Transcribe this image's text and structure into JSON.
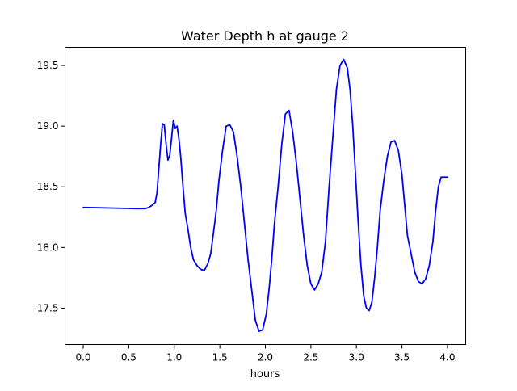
{
  "chart_data": {
    "type": "line",
    "title": "Water Depth h at gauge 2",
    "xlabel": "hours",
    "ylabel": "",
    "xlim": [
      -0.2,
      4.2
    ],
    "ylim": [
      17.2,
      19.65
    ],
    "xticks": [
      0.0,
      0.5,
      1.0,
      1.5,
      2.0,
      2.5,
      3.0,
      3.5,
      4.0
    ],
    "xtick_labels": [
      "0.0",
      "0.5",
      "1.0",
      "1.5",
      "2.0",
      "2.5",
      "3.0",
      "3.5",
      "4.0"
    ],
    "yticks": [
      17.5,
      18.0,
      18.5,
      19.0,
      19.5
    ],
    "ytick_labels": [
      "17.5",
      "18.0",
      "18.5",
      "19.0",
      "19.5"
    ],
    "grid": false,
    "series": [
      {
        "color": "#0000ff",
        "x": [
          0.0,
          0.3,
          0.6,
          0.68,
          0.72,
          0.76,
          0.79,
          0.81,
          0.83,
          0.85,
          0.87,
          0.89,
          0.91,
          0.93,
          0.95,
          0.97,
          0.99,
          1.01,
          1.03,
          1.05,
          1.07,
          1.09,
          1.12,
          1.15,
          1.18,
          1.21,
          1.25,
          1.29,
          1.33,
          1.37,
          1.4,
          1.43,
          1.46,
          1.49,
          1.53,
          1.57,
          1.61,
          1.65,
          1.69,
          1.73,
          1.77,
          1.81,
          1.85,
          1.89,
          1.93,
          1.97,
          2.01,
          2.04,
          2.07,
          2.1,
          2.14,
          2.18,
          2.22,
          2.26,
          2.3,
          2.34,
          2.38,
          2.42,
          2.46,
          2.5,
          2.54,
          2.58,
          2.62,
          2.66,
          2.7,
          2.74,
          2.78,
          2.82,
          2.86,
          2.9,
          2.93,
          2.96,
          2.99,
          3.02,
          3.05,
          3.08,
          3.11,
          3.14,
          3.17,
          3.2,
          3.23,
          3.26,
          3.3,
          3.34,
          3.38,
          3.42,
          3.46,
          3.5,
          3.53,
          3.56,
          3.6,
          3.64,
          3.68,
          3.72,
          3.76,
          3.8,
          3.84,
          3.87,
          3.9,
          3.93,
          3.96,
          4.0
        ],
        "y": [
          18.33,
          18.325,
          18.32,
          18.32,
          18.33,
          18.35,
          18.37,
          18.45,
          18.65,
          18.85,
          19.02,
          19.01,
          18.85,
          18.72,
          18.76,
          18.9,
          19.05,
          18.98,
          19.0,
          18.9,
          18.75,
          18.55,
          18.28,
          18.15,
          18.0,
          17.9,
          17.85,
          17.82,
          17.81,
          17.87,
          17.95,
          18.12,
          18.3,
          18.55,
          18.8,
          19.0,
          19.01,
          18.95,
          18.75,
          18.5,
          18.2,
          17.9,
          17.65,
          17.4,
          17.31,
          17.32,
          17.45,
          17.65,
          17.9,
          18.2,
          18.5,
          18.85,
          19.1,
          19.13,
          18.95,
          18.7,
          18.4,
          18.1,
          17.85,
          17.7,
          17.65,
          17.7,
          17.8,
          18.05,
          18.5,
          18.9,
          19.3,
          19.5,
          19.55,
          19.48,
          19.3,
          19.0,
          18.6,
          18.2,
          17.85,
          17.6,
          17.5,
          17.48,
          17.55,
          17.75,
          18.0,
          18.3,
          18.55,
          18.75,
          18.87,
          18.88,
          18.8,
          18.6,
          18.35,
          18.1,
          17.95,
          17.8,
          17.72,
          17.7,
          17.74,
          17.85,
          18.05,
          18.3,
          18.5,
          18.58,
          18.58,
          18.58
        ]
      }
    ]
  }
}
